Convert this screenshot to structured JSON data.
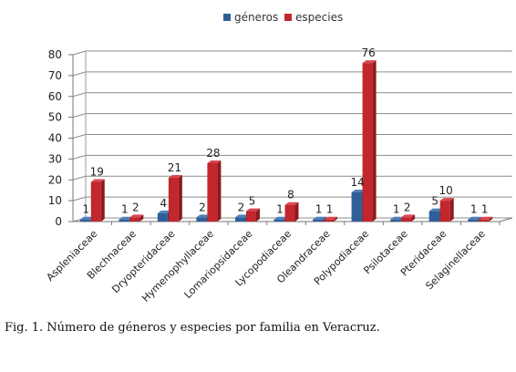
{
  "caption": "Fig. 1. Número de géneros y especies por familia en Veracruz.",
  "colors": {
    "generos": "#2f5f98",
    "especies": "#c1272d"
  },
  "chart_data": {
    "type": "bar",
    "title": "",
    "xlabel": "",
    "ylabel": "",
    "ylim": [
      0,
      80
    ],
    "yticks": [
      0,
      10,
      20,
      30,
      40,
      50,
      60,
      70,
      80
    ],
    "grid": true,
    "legend_position": "top",
    "categories": [
      "Aspleniaceae",
      "Blechnaceae",
      "Dryopteridaceae",
      "Hymenophyllaceae",
      "Lomariopsidaceae",
      "Lycopodiaceae",
      "Oleandraceae",
      "Polypodiaceae",
      "Psilotaceae",
      "Pteridaceae",
      "Selaginellaceae"
    ],
    "series": [
      {
        "name": "géneros",
        "values": [
          1,
          1,
          4,
          2,
          2,
          1,
          1,
          14,
          1,
          5,
          1
        ]
      },
      {
        "name": "especies",
        "values": [
          19,
          2,
          21,
          28,
          5,
          8,
          1,
          76,
          2,
          10,
          1
        ]
      }
    ]
  }
}
